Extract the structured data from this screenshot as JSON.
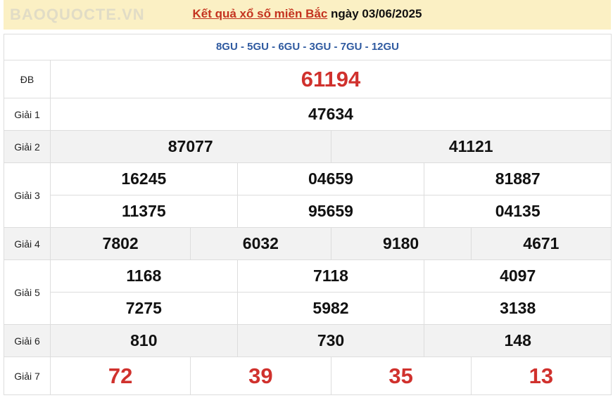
{
  "header": {
    "link": "Kết quả xổ số miền Bắc",
    "date_text": " ngày 03/06/2025"
  },
  "codes": "8GU - 5GU - 6GU - 3GU - 7GU - 12GU",
  "prizes": [
    {
      "label": "ĐB",
      "rows": [
        [
          "61194"
        ]
      ]
    },
    {
      "label": "Giải 1",
      "rows": [
        [
          "47634"
        ]
      ]
    },
    {
      "label": "Giải 2",
      "rows": [
        [
          "87077",
          "41121"
        ]
      ]
    },
    {
      "label": "Giải 3",
      "rows": [
        [
          "16245",
          "04659",
          "81887"
        ],
        [
          "11375",
          "95659",
          "04135"
        ]
      ]
    },
    {
      "label": "Giải 4",
      "rows": [
        [
          "7802",
          "6032",
          "9180",
          "4671"
        ]
      ]
    },
    {
      "label": "Giải 5",
      "rows": [
        [
          "1168",
          "7118",
          "4097"
        ],
        [
          "7275",
          "5982",
          "3138"
        ]
      ]
    },
    {
      "label": "Giải 6",
      "rows": [
        [
          "810",
          "730",
          "148"
        ]
      ]
    },
    {
      "label": "Giải 7",
      "rows": [
        [
          "72",
          "39",
          "35",
          "13"
        ]
      ]
    }
  ],
  "watermark": "BAOQUOCTE.VN",
  "colors": {
    "header_bg": "#fbf0c4",
    "accent_red": "#d0312d",
    "code_blue": "#2f5aa0"
  }
}
